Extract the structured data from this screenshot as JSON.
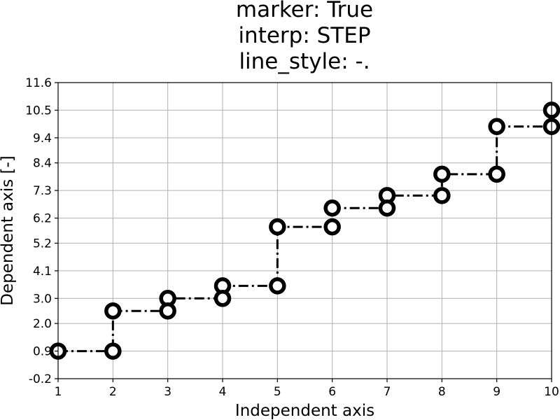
{
  "chart_data": {
    "type": "line",
    "title_lines": [
      "marker: True",
      "interp: STEP",
      "line_style: -."
    ],
    "xlabel": "Independent axis",
    "ylabel": "Dependent axis [-]",
    "xlim": [
      1,
      10
    ],
    "ylim": [
      -0.2,
      11.6
    ],
    "x_ticks": [
      1,
      2,
      3,
      4,
      5,
      6,
      7,
      8,
      9,
      10
    ],
    "x_tick_labels": [
      "1",
      "2",
      "3",
      "4",
      "5",
      "6",
      "7",
      "8",
      "9",
      "10"
    ],
    "y_ticks": [
      -0.2,
      0.9,
      2.0,
      3.0,
      4.1,
      5.2,
      6.2,
      7.3,
      8.4,
      9.4,
      10.5,
      11.6
    ],
    "y_tick_labels": [
      "-0.2",
      "0.9",
      "2.0",
      "3.0",
      "4.1",
      "5.2",
      "6.2",
      "7.3",
      "8.4",
      "9.4",
      "10.5",
      "11.6"
    ],
    "grid": true,
    "interpolation": "step",
    "line_style": "-.",
    "marker": true,
    "series": [
      {
        "x": [
          1,
          2,
          3,
          4,
          5,
          6,
          7,
          8,
          9,
          10
        ],
        "y": [
          0.9,
          2.5,
          3.0,
          3.5,
          5.85,
          6.6,
          7.1,
          7.95,
          9.85,
          10.5
        ]
      }
    ]
  }
}
